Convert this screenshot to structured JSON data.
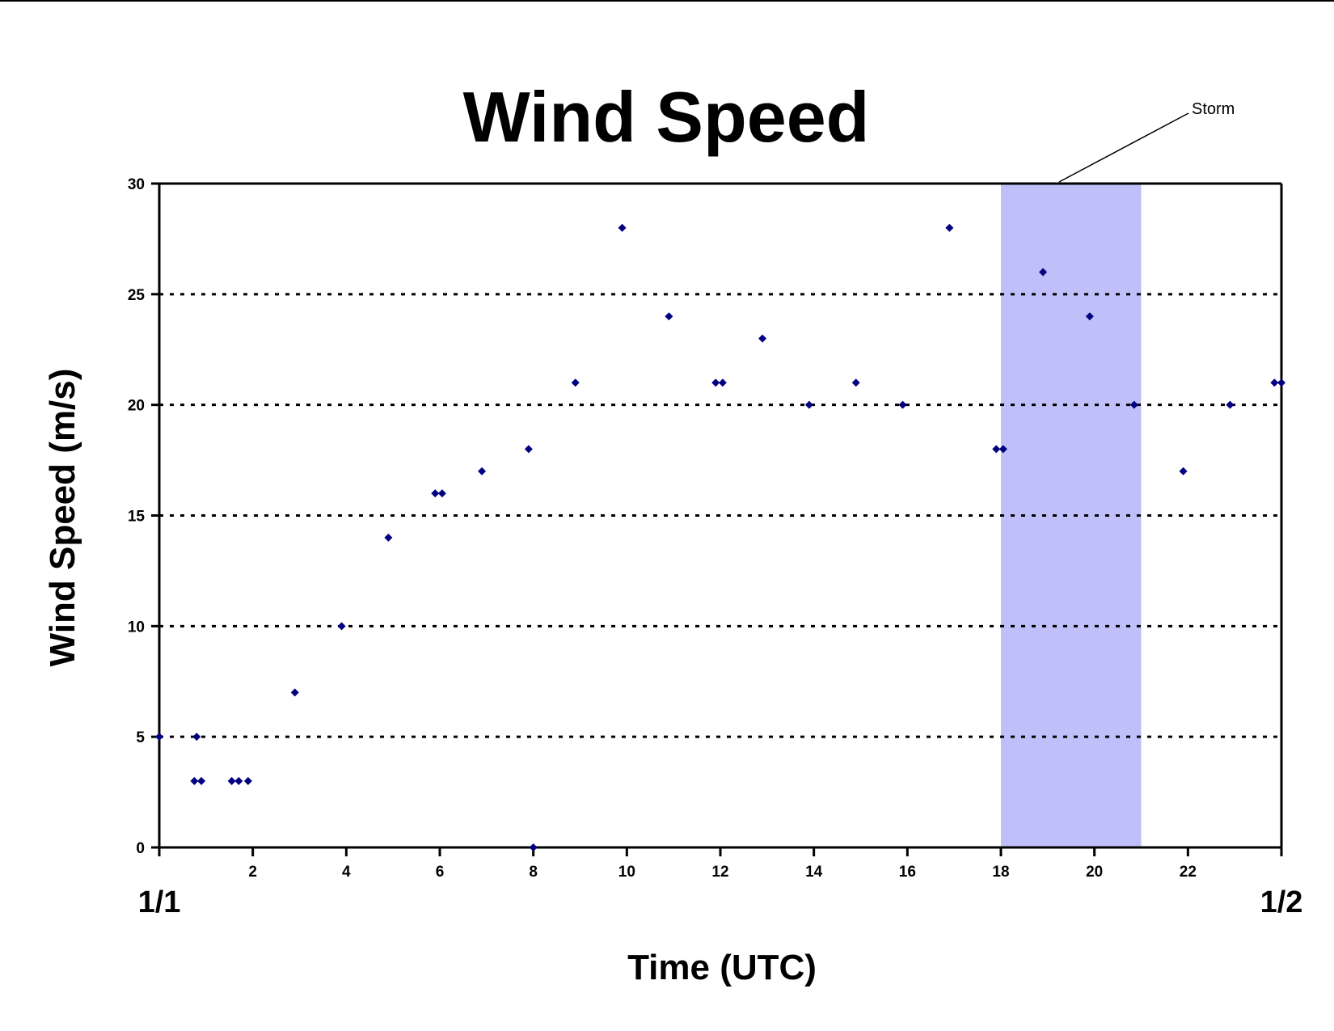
{
  "chart_data": {
    "type": "scatter",
    "title": "Wind Speed",
    "xlabel": "Time (UTC)",
    "ylabel": "Wind Speed (m/s)",
    "xlim": [
      0,
      24
    ],
    "ylim": [
      0,
      30
    ],
    "x_ticks": [
      2,
      4,
      6,
      8,
      10,
      12,
      14,
      16,
      18,
      20,
      22
    ],
    "y_ticks": [
      0,
      5,
      10,
      15,
      20,
      25,
      30
    ],
    "date_labels": [
      {
        "x": 0,
        "text": "1/1"
      },
      {
        "x": 24,
        "text": "1/2"
      }
    ],
    "grid": "horizontal dotted",
    "marker_color": "#000080",
    "storm_span": {
      "x_start": 18,
      "x_end": 21,
      "label": "Storm",
      "color": "#bfbffa"
    },
    "series": [
      {
        "points": [
          {
            "x": 0.0,
            "y": 5
          },
          {
            "x": 0.75,
            "y": 3
          },
          {
            "x": 0.8,
            "y": 5
          },
          {
            "x": 0.9,
            "y": 3
          },
          {
            "x": 1.55,
            "y": 3
          },
          {
            "x": 1.7,
            "y": 3
          },
          {
            "x": 1.9,
            "y": 3
          },
          {
            "x": 2.9,
            "y": 7
          },
          {
            "x": 3.9,
            "y": 10
          },
          {
            "x": 4.9,
            "y": 14
          },
          {
            "x": 5.9,
            "y": 16
          },
          {
            "x": 6.05,
            "y": 16
          },
          {
            "x": 6.9,
            "y": 17
          },
          {
            "x": 7.9,
            "y": 18
          },
          {
            "x": 8.0,
            "y": 0
          },
          {
            "x": 8.9,
            "y": 21
          },
          {
            "x": 9.9,
            "y": 28
          },
          {
            "x": 10.9,
            "y": 24
          },
          {
            "x": 11.9,
            "y": 21
          },
          {
            "x": 12.05,
            "y": 21
          },
          {
            "x": 12.9,
            "y": 23
          },
          {
            "x": 13.9,
            "y": 20
          },
          {
            "x": 14.9,
            "y": 21
          },
          {
            "x": 15.9,
            "y": 20
          },
          {
            "x": 16.9,
            "y": 28
          },
          {
            "x": 17.9,
            "y": 18
          },
          {
            "x": 18.05,
            "y": 18
          },
          {
            "x": 18.9,
            "y": 26
          },
          {
            "x": 19.9,
            "y": 24
          },
          {
            "x": 20.85,
            "y": 20
          },
          {
            "x": 21.9,
            "y": 17
          },
          {
            "x": 22.9,
            "y": 20
          },
          {
            "x": 23.85,
            "y": 21
          },
          {
            "x": 24.0,
            "y": 21
          }
        ]
      }
    ]
  }
}
